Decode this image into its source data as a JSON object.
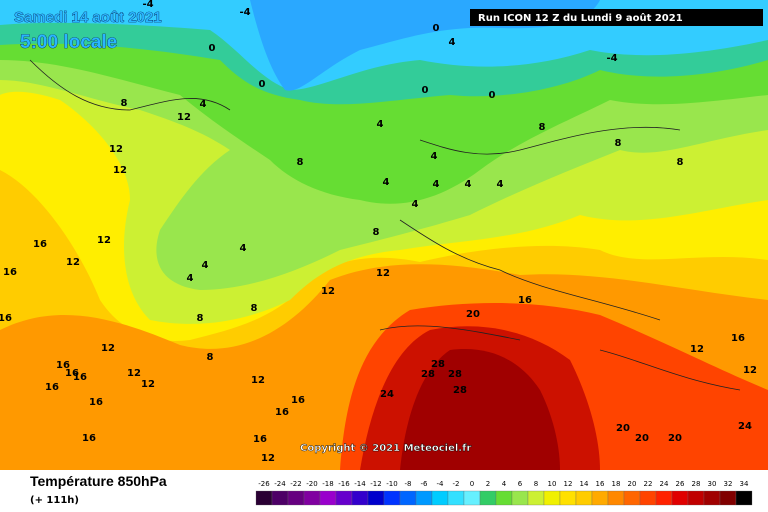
{
  "header": {
    "date": "Samedi 14 août 2021",
    "time": "5:00 locale",
    "run": "Run ICON 12 Z du Lundi 9 août 2021"
  },
  "copyright": "Copyright © 2021 Meteociel.fr",
  "footer": {
    "title": "Température 850hPa",
    "lead": "(+ 111h)"
  },
  "contour_labels": [
    -4,
    -4,
    -4,
    0,
    0,
    0,
    0,
    0,
    4,
    4,
    4,
    4,
    4,
    4,
    4,
    4,
    4,
    4,
    4,
    4,
    8,
    8,
    8,
    8,
    8,
    8,
    8,
    8,
    8,
    12,
    12,
    12,
    12,
    12,
    12,
    12,
    12,
    12,
    12,
    12,
    12,
    12,
    12,
    16,
    16,
    16,
    16,
    16,
    16,
    16,
    16,
    16,
    16,
    16,
    16,
    16,
    16,
    20,
    20,
    20,
    20,
    28,
    28,
    28,
    28,
    24,
    24
  ],
  "scale": [
    {
      "value": -26,
      "color": "#2a0033"
    },
    {
      "value": -24,
      "color": "#4d0066"
    },
    {
      "value": -22,
      "color": "#660080"
    },
    {
      "value": -20,
      "color": "#8000a0"
    },
    {
      "value": -18,
      "color": "#9900cc"
    },
    {
      "value": -16,
      "color": "#6600cc"
    },
    {
      "value": -14,
      "color": "#3300cc"
    },
    {
      "value": -12,
      "color": "#0000cc"
    },
    {
      "value": -10,
      "color": "#0033ff"
    },
    {
      "value": -8,
      "color": "#0066ff"
    },
    {
      "value": -6,
      "color": "#0099ff"
    },
    {
      "value": -4,
      "color": "#00ccff"
    },
    {
      "value": -2,
      "color": "#33e0ff"
    },
    {
      "value": 0,
      "color": "#66f0ff"
    },
    {
      "value": 2,
      "color": "#33cc66"
    },
    {
      "value": 4,
      "color": "#66dd33"
    },
    {
      "value": 6,
      "color": "#99e64d"
    },
    {
      "value": 8,
      "color": "#ccf033"
    },
    {
      "value": 10,
      "color": "#f0f000"
    },
    {
      "value": 12,
      "color": "#ffe000"
    },
    {
      "value": 14,
      "color": "#ffcc00"
    },
    {
      "value": 16,
      "color": "#ffaa00"
    },
    {
      "value": 18,
      "color": "#ff8800"
    },
    {
      "value": 20,
      "color": "#ff6600"
    },
    {
      "value": 22,
      "color": "#ff4400"
    },
    {
      "value": 24,
      "color": "#ff2200"
    },
    {
      "value": 26,
      "color": "#e00000"
    },
    {
      "value": 28,
      "color": "#c00000"
    },
    {
      "value": 30,
      "color": "#a00000"
    },
    {
      "value": 32,
      "color": "#800000"
    },
    {
      "value": 34,
      "color": "#000000"
    }
  ]
}
